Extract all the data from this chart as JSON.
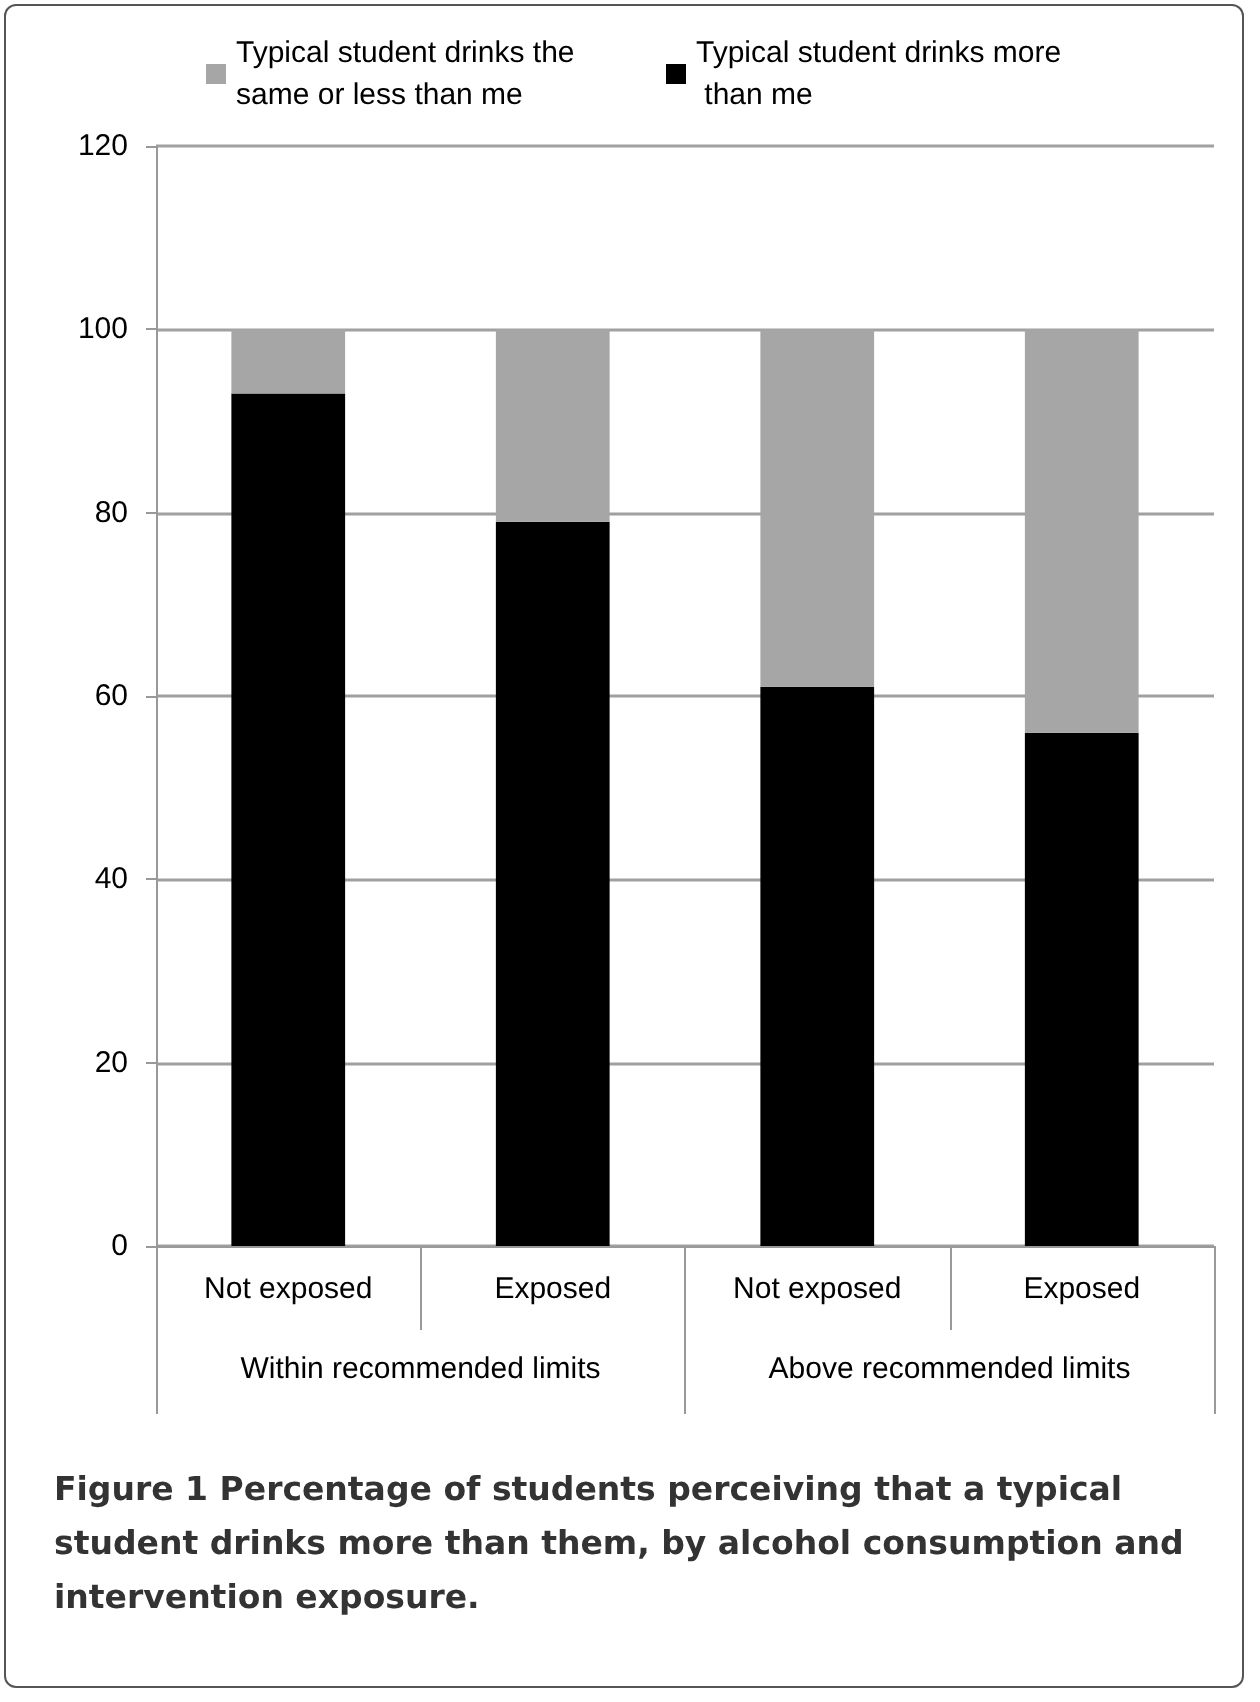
{
  "chart_data": {
    "type": "bar",
    "title": "Figure 1 Percentage of students perceiving that a typical student drinks more than them, by alcohol consumption and intervention exposure.",
    "categories": [
      "Not exposed",
      "Exposed",
      "Not exposed",
      "Exposed"
    ],
    "annotations": [
      "Within recommended limits",
      "Above recommended limits"
    ],
    "stacked": true,
    "series": [
      {
        "name": "Typical student drinks more than me",
        "color": "#000000",
        "values": [
          93,
          79,
          61,
          56
        ]
      },
      {
        "name": "Typical student drinks the same or less than me",
        "color": "#a6a6a6",
        "values": [
          7,
          21,
          39,
          44
        ]
      }
    ],
    "ylim": [
      0,
      120
    ],
    "yticks": [
      0,
      20,
      40,
      60,
      80,
      100,
      120
    ],
    "grid": "y",
    "legend": "top"
  }
}
